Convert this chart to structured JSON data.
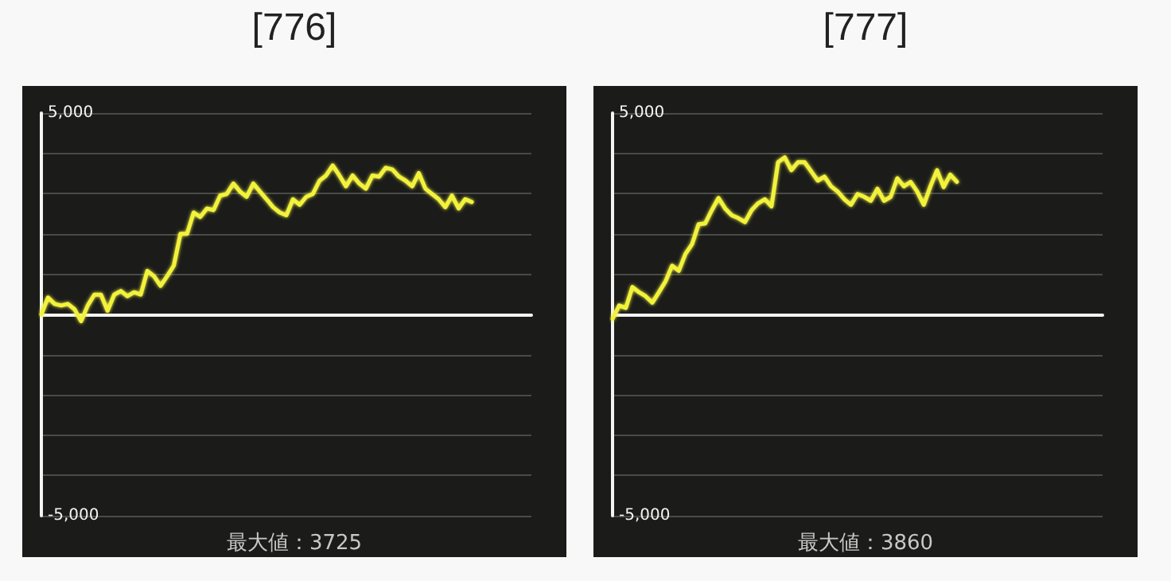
{
  "chart_data": [
    {
      "type": "line",
      "title": "[776]",
      "annotations": [
        "最大値：3725"
      ],
      "categories": [
        null,
        null,
        null,
        null,
        null,
        null,
        null,
        null,
        null,
        null,
        null,
        null,
        null,
        null,
        null,
        null,
        null,
        null,
        null,
        null,
        null,
        null,
        null,
        null,
        null,
        null,
        null,
        null,
        null,
        null,
        null,
        null,
        null,
        null,
        null,
        null,
        null,
        null,
        null,
        null,
        null,
        null,
        null,
        null,
        null,
        null,
        null,
        null,
        null,
        null,
        null,
        null,
        null,
        null,
        null,
        null,
        null,
        null,
        null,
        null,
        null,
        null,
        null,
        null,
        null,
        null,
        null,
        null,
        null,
        null,
        null,
        null,
        null,
        null,
        null
      ],
      "series": [
        {
          "color": "#f2f23c",
          "values": [
            0,
            420,
            260,
            220,
            260,
            130,
            -170,
            220,
            490,
            490,
            90,
            490,
            580,
            450,
            550,
            490,
            1080,
            950,
            710,
            950,
            1210,
            2000,
            2000,
            2530,
            2420,
            2630,
            2590,
            2950,
            2990,
            3250,
            3050,
            2920,
            3250,
            3050,
            2860,
            2660,
            2530,
            2460,
            2860,
            2720,
            2920,
            2990,
            3320,
            3450,
            3700,
            3450,
            3180,
            3450,
            3250,
            3120,
            3450,
            3420,
            3640,
            3600,
            3420,
            3320,
            3180,
            3510,
            3120,
            2990,
            2860,
            2660,
            2950,
            2630,
            2860,
            2790,
            null,
            null,
            null,
            null,
            null,
            null,
            null,
            null,
            null
          ]
        }
      ],
      "ylim": [
        -5000,
        5000
      ],
      "yticks": [
        {
          "value": -5000,
          "label": "-5,000"
        },
        {
          "value": -4000,
          "label": null
        },
        {
          "value": -3000,
          "label": null
        },
        {
          "value": -2000,
          "label": null
        },
        {
          "value": -1000,
          "label": null
        },
        {
          "value": 0,
          "label": null
        },
        {
          "value": 1000,
          "label": null
        },
        {
          "value": 2000,
          "label": null
        },
        {
          "value": 3000,
          "label": null
        },
        {
          "value": 4000,
          "label": null
        },
        {
          "value": 5000,
          "label": "5,000"
        }
      ],
      "grid": "y",
      "tick_labels": "y",
      "line_style": "solid"
    },
    {
      "type": "line",
      "title": "[777]",
      "annotations": [
        "最大値：3860"
      ],
      "categories": [
        null,
        null,
        null,
        null,
        null,
        null,
        null,
        null,
        null,
        null,
        null,
        null,
        null,
        null,
        null,
        null,
        null,
        null,
        null,
        null,
        null,
        null,
        null,
        null,
        null,
        null,
        null,
        null,
        null,
        null,
        null,
        null,
        null,
        null,
        null,
        null,
        null,
        null,
        null,
        null,
        null,
        null,
        null,
        null,
        null,
        null,
        null,
        null,
        null,
        null,
        null,
        null,
        null,
        null,
        null,
        null,
        null,
        null,
        null,
        null,
        null,
        null,
        null,
        null,
        null,
        null,
        null,
        null,
        null,
        null,
        null,
        null,
        null,
        null,
        null
      ],
      "series": [
        {
          "color": "#f2f23c",
          "values": [
            -110,
            220,
            160,
            680,
            550,
            450,
            290,
            550,
            820,
            1210,
            1080,
            1500,
            1740,
            2240,
            2260,
            2590,
            2890,
            2630,
            2460,
            2390,
            2290,
            2590,
            2760,
            2860,
            2680,
            3780,
            3900,
            3580,
            3780,
            3780,
            3550,
            3320,
            3420,
            3180,
            3050,
            2860,
            2720,
            2990,
            2920,
            2820,
            3120,
            2820,
            2920,
            3380,
            3180,
            3290,
            3050,
            2720,
            3180,
            3580,
            3160,
            3470,
            3290,
            null,
            null,
            null,
            null,
            null,
            null,
            null,
            null,
            null,
            null,
            null,
            null,
            null,
            null,
            null,
            null,
            null,
            null,
            null,
            null,
            null,
            null
          ]
        }
      ],
      "ylim": [
        -5000,
        5000
      ],
      "yticks": [
        {
          "value": -5000,
          "label": "-5,000"
        },
        {
          "value": -4000,
          "label": null
        },
        {
          "value": -3000,
          "label": null
        },
        {
          "value": -2000,
          "label": null
        },
        {
          "value": -1000,
          "label": null
        },
        {
          "value": 0,
          "label": null
        },
        {
          "value": 1000,
          "label": null
        },
        {
          "value": 2000,
          "label": null
        },
        {
          "value": 3000,
          "label": null
        },
        {
          "value": 4000,
          "label": null
        },
        {
          "value": 5000,
          "label": "5,000"
        }
      ],
      "grid": "y",
      "tick_labels": "y",
      "line_style": "solid"
    }
  ]
}
